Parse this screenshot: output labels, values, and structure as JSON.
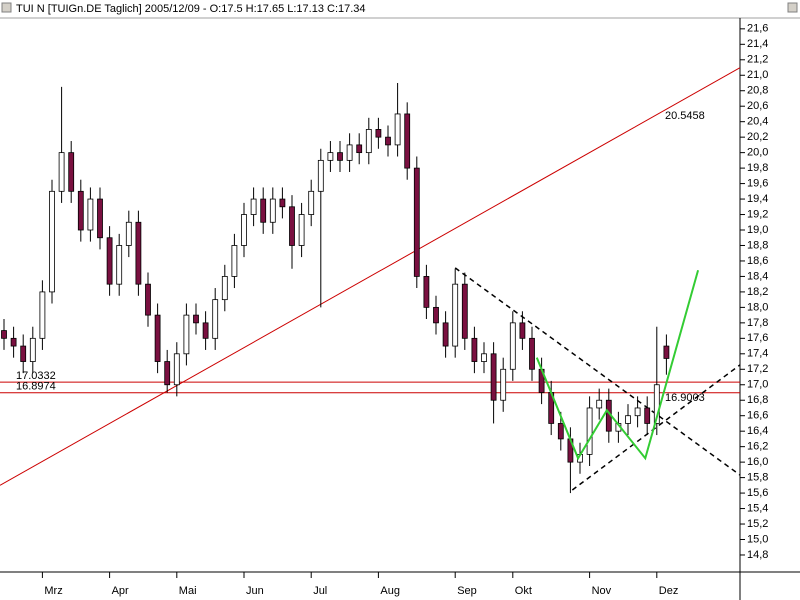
{
  "chart_data": {
    "type": "candlestick",
    "title": "TUI N [TUIGn.DE  Taglich] 2005/12/09 - O:17.5 H:17.65 L:17.13 C:17.34",
    "categories": [
      null,
      null,
      null,
      null,
      "Mrz",
      null,
      null,
      null,
      null,
      null,
      null,
      "Apr",
      null,
      null,
      null,
      null,
      null,
      null,
      "Mai",
      null,
      null,
      null,
      null,
      null,
      null,
      "Jun",
      null,
      null,
      null,
      null,
      null,
      null,
      "Jul",
      null,
      null,
      null,
      null,
      null,
      null,
      "Aug",
      null,
      null,
      null,
      null,
      null,
      null,
      null,
      "Sep",
      null,
      null,
      null,
      null,
      null,
      "Okt",
      null,
      null,
      null,
      null,
      null,
      null,
      null,
      "Nov",
      null,
      null,
      null,
      null,
      null,
      null,
      "Dez",
      null
    ],
    "open": [
      17.7,
      17.6,
      17.5,
      17.3,
      17.6,
      18.2,
      19.5,
      20.0,
      19.5,
      19.0,
      19.4,
      18.9,
      18.3,
      18.8,
      19.1,
      18.3,
      17.9,
      17.3,
      17.0,
      17.4,
      17.9,
      17.8,
      17.6,
      18.1,
      18.4,
      18.8,
      19.2,
      19.4,
      19.1,
      19.4,
      19.3,
      18.8,
      19.2,
      19.5,
      19.9,
      20.0,
      19.9,
      20.1,
      20.0,
      20.3,
      20.2,
      20.1,
      20.5,
      19.8,
      18.4,
      18.0,
      17.8,
      17.5,
      18.3,
      17.6,
      17.3,
      17.4,
      16.8,
      17.2,
      17.8,
      17.6,
      17.2,
      16.9,
      16.5,
      16.3,
      16.0,
      16.1,
      16.7,
      16.8,
      16.4,
      16.5,
      16.6,
      16.7,
      16.5,
      17.5
    ],
    "high": [
      17.85,
      17.75,
      17.65,
      17.75,
      18.35,
      19.65,
      20.85,
      20.15,
      19.65,
      19.55,
      19.55,
      19.05,
      18.95,
      19.25,
      19.25,
      18.45,
      18.05,
      17.45,
      17.55,
      18.05,
      18.05,
      17.95,
      18.25,
      18.55,
      18.95,
      19.35,
      19.55,
      19.55,
      19.55,
      19.55,
      19.45,
      19.35,
      19.65,
      20.05,
      20.15,
      20.15,
      20.25,
      20.25,
      20.45,
      20.45,
      20.35,
      20.9,
      20.65,
      19.95,
      18.55,
      18.15,
      17.95,
      18.5,
      18.45,
      17.75,
      17.55,
      17.55,
      17.35,
      17.95,
      17.95,
      17.75,
      17.35,
      17.05,
      16.65,
      16.45,
      16.25,
      16.85,
      16.95,
      16.95,
      16.65,
      16.75,
      16.85,
      16.85,
      17.75,
      17.65
    ],
    "low": [
      17.45,
      17.35,
      17.15,
      17.15,
      17.45,
      18.05,
      19.35,
      19.35,
      18.85,
      18.85,
      18.75,
      18.15,
      18.15,
      18.65,
      18.15,
      17.75,
      17.15,
      16.9,
      16.85,
      17.25,
      17.65,
      17.45,
      17.45,
      17.95,
      18.25,
      18.65,
      19.05,
      18.95,
      18.95,
      19.15,
      18.5,
      18.65,
      19.05,
      18.0,
      19.75,
      19.75,
      19.75,
      19.85,
      19.85,
      20.05,
      19.95,
      19.95,
      19.65,
      18.25,
      17.85,
      17.65,
      17.35,
      17.35,
      17.45,
      17.15,
      17.15,
      16.5,
      16.65,
      17.05,
      17.45,
      17.05,
      16.75,
      16.35,
      16.15,
      15.6,
      15.85,
      15.95,
      16.55,
      16.25,
      16.25,
      16.35,
      16.45,
      16.35,
      16.35,
      17.13
    ],
    "close": [
      17.6,
      17.5,
      17.3,
      17.6,
      18.2,
      19.5,
      20.0,
      19.5,
      19.0,
      19.4,
      18.9,
      18.3,
      18.8,
      19.1,
      18.3,
      17.9,
      17.3,
      17.0,
      17.4,
      17.9,
      17.8,
      17.6,
      18.1,
      18.4,
      18.8,
      19.2,
      19.4,
      19.1,
      19.4,
      19.3,
      18.8,
      19.2,
      19.5,
      19.9,
      20.0,
      19.9,
      20.1,
      20.0,
      20.3,
      20.2,
      20.1,
      20.5,
      19.8,
      18.4,
      18.0,
      17.8,
      17.5,
      18.3,
      17.6,
      17.3,
      17.4,
      16.8,
      17.2,
      17.8,
      17.6,
      17.2,
      16.9,
      16.5,
      16.3,
      16.0,
      16.1,
      16.7,
      16.8,
      16.4,
      16.5,
      16.6,
      16.7,
      16.5,
      17.0,
      17.34
    ],
    "up_color": "#ffffff",
    "down_color": "#7a1040",
    "wick_color": "#000000",
    "ylim": [
      14.58,
      21.74
    ],
    "yticks": [
      {
        "value": 21.6,
        "label": "21,6"
      },
      {
        "value": 21.4,
        "label": "21,4"
      },
      {
        "value": 21.2,
        "label": "21,2"
      },
      {
        "value": 21.0,
        "label": "21,0"
      },
      {
        "value": 20.8,
        "label": "20,8"
      },
      {
        "value": 20.6,
        "label": "20,6"
      },
      {
        "value": 20.4,
        "label": "20,4"
      },
      {
        "value": 20.2,
        "label": "20,2"
      },
      {
        "value": 20.0,
        "label": "20,0"
      },
      {
        "value": 19.8,
        "label": "19,8"
      },
      {
        "value": 19.6,
        "label": "19,6"
      },
      {
        "value": 19.4,
        "label": "19,4"
      },
      {
        "value": 19.2,
        "label": "19,2"
      },
      {
        "value": 19.0,
        "label": "19,0"
      },
      {
        "value": 18.8,
        "label": "18,8"
      },
      {
        "value": 18.6,
        "label": "18,6"
      },
      {
        "value": 18.4,
        "label": "18,4"
      },
      {
        "value": 18.2,
        "label": "18,2"
      },
      {
        "value": 18.0,
        "label": "18,0"
      },
      {
        "value": 17.8,
        "label": "17,8"
      },
      {
        "value": 17.6,
        "label": "17,6"
      },
      {
        "value": 17.4,
        "label": "17,4"
      },
      {
        "value": 17.2,
        "label": "17,2"
      },
      {
        "value": 17.0,
        "label": "17,0"
      },
      {
        "value": 16.8,
        "label": "16,8"
      },
      {
        "value": 16.6,
        "label": "16,6"
      },
      {
        "value": 16.4,
        "label": "16,4"
      },
      {
        "value": 16.2,
        "label": "16,2"
      },
      {
        "value": 16.0,
        "label": "16,0"
      },
      {
        "value": 15.8,
        "label": "15,8"
      },
      {
        "value": 15.6,
        "label": "15,6"
      },
      {
        "value": 15.4,
        "label": "15,4"
      },
      {
        "value": 15.2,
        "label": "15,2"
      },
      {
        "value": 15.0,
        "label": "15,0"
      },
      {
        "value": 14.8,
        "label": "14,8"
      }
    ],
    "trend_line": {
      "color": "#cc0000",
      "points": [
        [
          17,
          16.92
        ],
        [
          76.7,
          21.1
        ]
      ],
      "label": 20.5458
    },
    "levels": [
      {
        "value": 17.0332,
        "color": "#cc0000"
      },
      {
        "value": 16.8974,
        "color": "#cc0000"
      }
    ],
    "dashed_lines": [
      [
        [
          47,
          18.51
        ],
        [
          76.7,
          15.83
        ]
      ],
      [
        [
          59.2,
          15.64
        ],
        [
          76.7,
          17.26
        ]
      ]
    ],
    "pattern": {
      "color": "#33cc33",
      "points": [
        [
          55.5,
          17.35
        ],
        [
          59.8,
          16.05
        ],
        [
          62.8,
          16.67
        ],
        [
          66.8,
          16.05
        ],
        [
          72.3,
          18.48
        ]
      ],
      "label": 16.9003
    }
  }
}
